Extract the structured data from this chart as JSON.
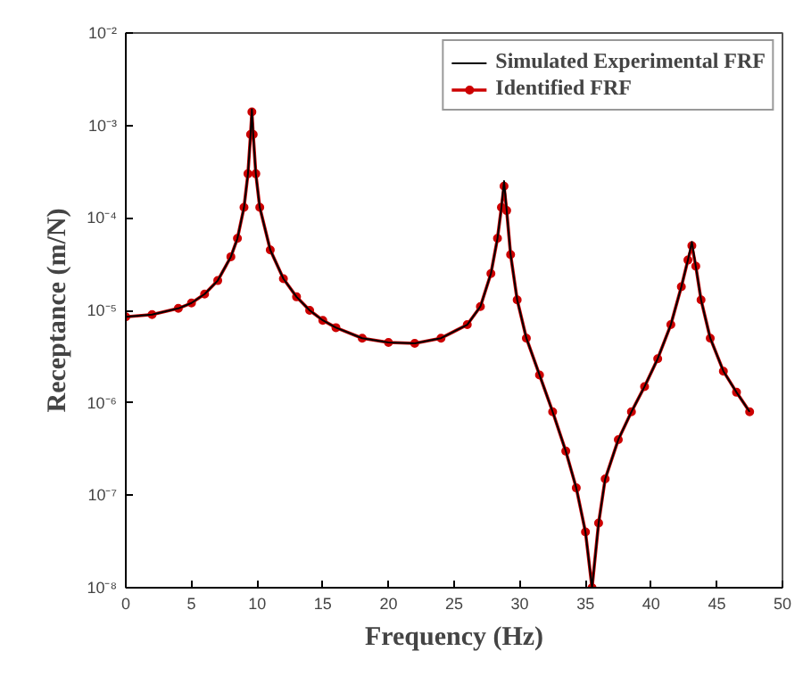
{
  "chart_data": {
    "type": "line",
    "xlabel": "Frequency (Hz)",
    "ylabel": "Receptance (m/N)",
    "log": "y",
    "xlim": [
      0,
      50
    ],
    "ylim": [
      1e-08,
      0.01
    ],
    "xticks": [
      0,
      5,
      10,
      15,
      20,
      25,
      30,
      35,
      40,
      45,
      50
    ],
    "yticks": [
      {
        "value": 1e-08,
        "label": "10⁻⁸"
      },
      {
        "value": 1e-07,
        "label": "10⁻⁷"
      },
      {
        "value": 1e-06,
        "label": "10⁻⁶"
      },
      {
        "value": 1e-05,
        "label": "10⁻⁵"
      },
      {
        "value": 0.0001,
        "label": "10⁻⁴"
      },
      {
        "value": 0.001,
        "label": "10⁻³"
      },
      {
        "value": 0.01,
        "label": "10⁻²"
      }
    ],
    "x": [
      0,
      2,
      4,
      5,
      6,
      7,
      8,
      8.5,
      9,
      9.3,
      9.5,
      9.6,
      9.7,
      9.9,
      10.2,
      11,
      12,
      13,
      14,
      15,
      16,
      18,
      20,
      22,
      24,
      26,
      27,
      27.8,
      28.3,
      28.6,
      28.8,
      29.0,
      29.3,
      29.8,
      30.5,
      31.5,
      32.5,
      33.5,
      34.3,
      35,
      35.5,
      36,
      36.5,
      37.5,
      38.5,
      39.5,
      40.5,
      41.5,
      42.3,
      42.8,
      43.1,
      43.4,
      43.8,
      44.5,
      45.5,
      46.5,
      47.5
    ],
    "series": [
      {
        "name": "Simulated Experimental FRF",
        "color": "#000000",
        "marker": "none",
        "values": [
          8.5e-06,
          9e-06,
          1.05e-05,
          1.2e-05,
          1.5e-05,
          2.1e-05,
          3.8e-05,
          6e-05,
          0.00013,
          0.0003,
          0.0008,
          0.0015,
          0.0008,
          0.0003,
          0.00013,
          4.5e-05,
          2.2e-05,
          1.4e-05,
          1e-05,
          7.8e-06,
          6.5e-06,
          5e-06,
          4.5e-06,
          4.4e-06,
          5e-06,
          7e-06,
          1.1e-05,
          2.5e-05,
          6e-05,
          0.00013,
          0.00025,
          0.00012,
          4e-05,
          1.3e-05,
          5e-06,
          2e-06,
          8e-07,
          3e-07,
          1.2e-07,
          4e-08,
          1e-08,
          5e-08,
          1.5e-07,
          4e-07,
          8e-07,
          1.5e-06,
          3e-06,
          7e-06,
          1.8e-05,
          3.5e-05,
          5.5e-05,
          3e-05,
          1.3e-05,
          5e-06,
          2.2e-06,
          1.3e-06,
          8e-07
        ]
      },
      {
        "name": "Identified FRF",
        "color": "#cc0000",
        "marker": "circle",
        "values": [
          8.5e-06,
          9e-06,
          1.05e-05,
          1.2e-05,
          1.5e-05,
          2.1e-05,
          3.8e-05,
          6e-05,
          0.00013,
          0.0003,
          0.0008,
          0.0014,
          0.0008,
          0.0003,
          0.00013,
          4.5e-05,
          2.2e-05,
          1.4e-05,
          1e-05,
          7.8e-06,
          6.5e-06,
          5e-06,
          4.5e-06,
          4.4e-06,
          5e-06,
          7e-06,
          1.1e-05,
          2.5e-05,
          6e-05,
          0.00013,
          0.00022,
          0.00012,
          4e-05,
          1.3e-05,
          5e-06,
          2e-06,
          8e-07,
          3e-07,
          1.2e-07,
          4e-08,
          1e-08,
          5e-08,
          1.5e-07,
          4e-07,
          8e-07,
          1.5e-06,
          3e-06,
          7e-06,
          1.8e-05,
          3.5e-05,
          5e-05,
          3e-05,
          1.3e-05,
          5e-06,
          2.2e-06,
          1.3e-06,
          8e-07
        ]
      }
    ],
    "legend": "top right",
    "grid": false
  }
}
